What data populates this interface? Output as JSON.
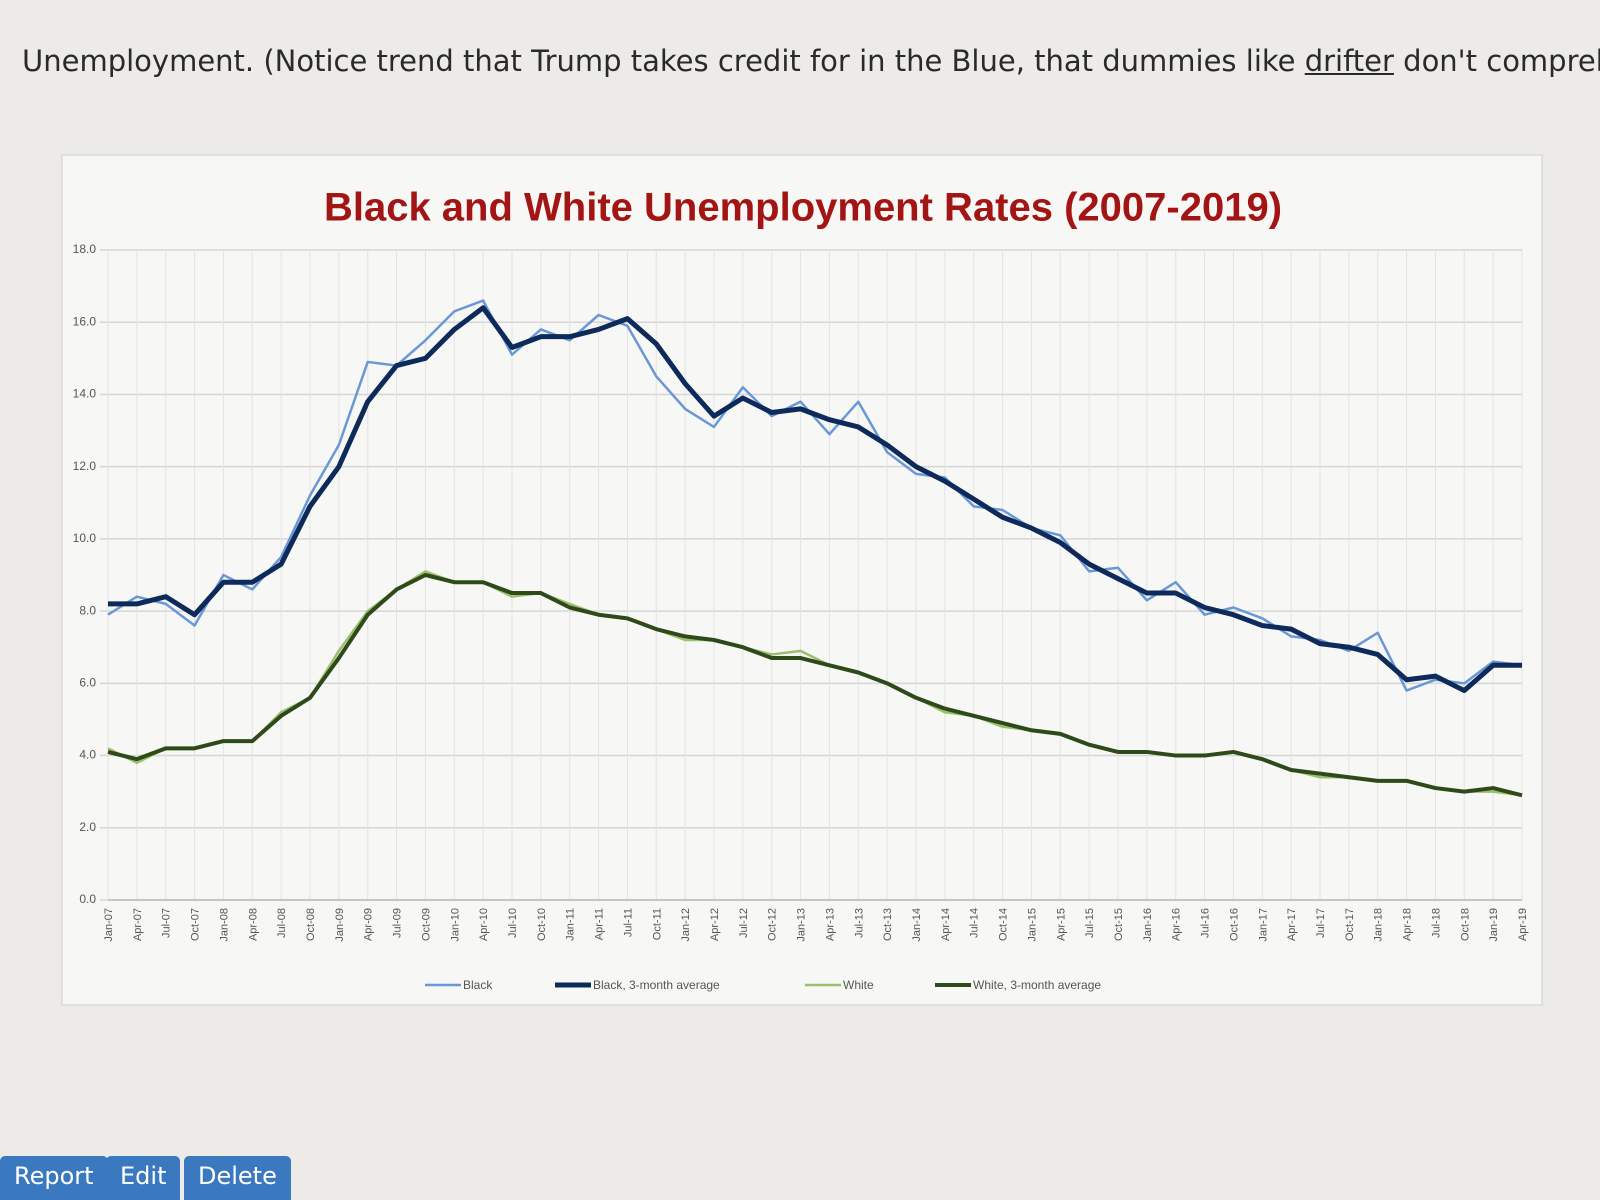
{
  "post": {
    "text": "Unemployment. (Notice trend that Trump takes credit for in the Blue, that dummies like",
    "link": "drifter",
    "text_after": "don't comprehen"
  },
  "buttons": [
    "Report",
    "Edit",
    "Delete"
  ],
  "chart_data": {
    "type": "line",
    "title": "Black and White Unemployment Rates (2007-2019)",
    "categories": [
      "Jan-07",
      "Apr-07",
      "Jul-07",
      "Oct-07",
      "Jan-08",
      "Apr-08",
      "Jul-08",
      "Oct-08",
      "Jan-09",
      "Apr-09",
      "Jul-09",
      "Oct-09",
      "Jan-10",
      "Apr-10",
      "Jul-10",
      "Oct-10",
      "Jan-11",
      "Apr-11",
      "Jul-11",
      "Oct-11",
      "Jan-12",
      "Apr-12",
      "Jul-12",
      "Oct-12",
      "Jan-13",
      "Apr-13",
      "Jul-13",
      "Oct-13",
      "Jan-14",
      "Apr-14",
      "Jul-14",
      "Oct-14",
      "Jan-15",
      "Apr-15",
      "Jul-15",
      "Oct-15",
      "Jan-16",
      "Apr-16",
      "Jul-16",
      "Oct-16",
      "Jan-17",
      "Apr-17",
      "Jul-17",
      "Oct-17",
      "Jan-18",
      "Apr-18",
      "Jul-18",
      "Oct-18",
      "Jan-19",
      "Apr-19"
    ],
    "series": [
      {
        "name": "Black",
        "color": "#6a98d6",
        "width": 2.5,
        "values": [
          7.9,
          8.4,
          8.2,
          7.6,
          9.0,
          8.6,
          9.5,
          11.2,
          12.6,
          14.9,
          14.8,
          15.5,
          16.3,
          16.6,
          15.1,
          15.8,
          15.5,
          16.2,
          15.9,
          14.5,
          13.6,
          13.1,
          14.2,
          13.4,
          13.8,
          12.9,
          13.8,
          12.4,
          11.8,
          11.7,
          10.9,
          10.8,
          10.3,
          10.1,
          9.1,
          9.2,
          8.3,
          8.8,
          7.9,
          8.1,
          7.8,
          7.3,
          7.2,
          6.9,
          7.4,
          5.8,
          6.1,
          6.0,
          6.6,
          6.5
        ]
      },
      {
        "name": "Black, 3-month average",
        "color": "#0d2a5a",
        "width": 5,
        "values": [
          8.2,
          8.2,
          8.4,
          7.9,
          8.8,
          8.8,
          9.3,
          10.9,
          12.0,
          13.8,
          14.8,
          15.0,
          15.8,
          16.4,
          15.3,
          15.6,
          15.6,
          15.8,
          16.1,
          15.4,
          14.3,
          13.4,
          13.9,
          13.5,
          13.6,
          13.3,
          13.1,
          12.6,
          12.0,
          11.6,
          11.1,
          10.6,
          10.3,
          9.9,
          9.3,
          8.9,
          8.5,
          8.5,
          8.1,
          7.9,
          7.6,
          7.5,
          7.1,
          7.0,
          6.8,
          6.1,
          6.2,
          5.8,
          6.5,
          6.5
        ]
      },
      {
        "name": "White",
        "color": "#9bbf6a",
        "width": 2.5,
        "values": [
          4.2,
          3.8,
          4.2,
          4.2,
          4.4,
          4.4,
          5.2,
          5.6,
          6.9,
          8.0,
          8.6,
          9.1,
          8.8,
          8.8,
          8.4,
          8.5,
          8.2,
          7.9,
          7.8,
          7.5,
          7.2,
          7.2,
          7.0,
          6.8,
          6.9,
          6.5,
          6.3,
          6.0,
          5.6,
          5.2,
          5.1,
          4.8,
          4.7,
          4.6,
          4.3,
          4.1,
          4.1,
          4.0,
          4.0,
          4.1,
          3.9,
          3.6,
          3.4,
          3.4,
          3.3,
          3.3,
          3.1,
          3.0,
          3.0,
          2.9
        ]
      },
      {
        "name": "White, 3-month average",
        "color": "#2f4a1a",
        "width": 4,
        "values": [
          4.1,
          3.9,
          4.2,
          4.2,
          4.4,
          4.4,
          5.1,
          5.6,
          6.7,
          7.9,
          8.6,
          9.0,
          8.8,
          8.8,
          8.5,
          8.5,
          8.1,
          7.9,
          7.8,
          7.5,
          7.3,
          7.2,
          7.0,
          6.7,
          6.7,
          6.5,
          6.3,
          6.0,
          5.6,
          5.3,
          5.1,
          4.9,
          4.7,
          4.6,
          4.3,
          4.1,
          4.1,
          4.0,
          4.0,
          4.1,
          3.9,
          3.6,
          3.5,
          3.4,
          3.3,
          3.3,
          3.1,
          3.0,
          3.1,
          2.9
        ]
      }
    ],
    "ylim": [
      0,
      18
    ],
    "yticks": [
      {
        "value": 0,
        "label": "0.0"
      },
      {
        "value": 2,
        "label": "2.0"
      },
      {
        "value": 4,
        "label": "4.0"
      },
      {
        "value": 6,
        "label": "6.0"
      },
      {
        "value": 8,
        "label": "8.0"
      },
      {
        "value": 10,
        "label": "10.0"
      },
      {
        "value": 12,
        "label": "12.0"
      },
      {
        "value": 14,
        "label": "14.0"
      },
      {
        "value": 16,
        "label": "16.0"
      },
      {
        "value": 18,
        "label": "18.0"
      }
    ],
    "grid": true,
    "legend": "bottom"
  }
}
